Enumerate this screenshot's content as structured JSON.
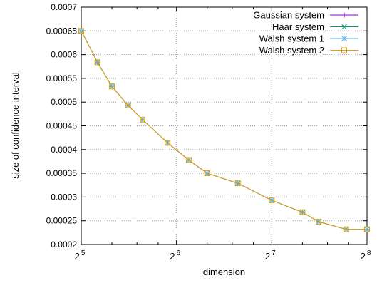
{
  "chart_data": {
    "type": "line",
    "title": "",
    "xlabel": "dimension",
    "ylabel": "size of confidence interval",
    "x_scale": "log2",
    "xlim": [
      32,
      256
    ],
    "ylim": [
      0.0002,
      0.0007
    ],
    "x_ticks": [
      {
        "value": 32,
        "base": "2",
        "exp": "5"
      },
      {
        "value": 64,
        "base": "2",
        "exp": "6"
      },
      {
        "value": 128,
        "base": "2",
        "exp": "7"
      },
      {
        "value": 256,
        "base": "2",
        "exp": "8"
      }
    ],
    "y_ticks": [
      "0.0002",
      "0.00025",
      "0.0003",
      "0.00035",
      "0.0004",
      "0.00045",
      "0.0005",
      "0.00055",
      "0.0006",
      "0.00065",
      "0.0007"
    ],
    "grid": true,
    "legend_position": "top-right",
    "x": [
      32,
      36,
      40,
      45,
      50,
      60,
      70,
      80,
      100,
      128,
      160,
      180,
      220,
      256
    ],
    "series": [
      {
        "name": "Gaussian system",
        "color": "#9400d3",
        "marker": "plus",
        "values": [
          0.00065,
          0.000584,
          0.000533,
          0.000493,
          0.000463,
          0.000414,
          0.000378,
          0.00035,
          0.000329,
          0.000293,
          0.000268,
          0.000248,
          0.000232,
          0.000232
        ]
      },
      {
        "name": "Haar system",
        "color": "#009e73",
        "marker": "cross",
        "values": [
          0.00065,
          0.000584,
          0.000533,
          0.000493,
          0.000463,
          0.000414,
          0.000378,
          0.00035,
          0.000329,
          0.000293,
          0.000268,
          0.000248,
          0.000232,
          0.000232
        ]
      },
      {
        "name": "Walsh system 1",
        "color": "#56b4e9",
        "marker": "star",
        "values": [
          0.00065,
          0.000584,
          0.000533,
          0.000493,
          0.000463,
          0.000414,
          0.000378,
          0.00035,
          0.000329,
          0.000293,
          0.000268,
          0.000248,
          0.000232,
          0.000232
        ]
      },
      {
        "name": "Walsh system 2",
        "color": "#e69f00",
        "marker": "square",
        "values": [
          0.00065,
          0.000584,
          0.000533,
          0.000493,
          0.000463,
          0.000414,
          0.000378,
          0.00035,
          0.000329,
          0.000293,
          0.000268,
          0.000248,
          0.000232,
          0.000232
        ]
      }
    ]
  }
}
